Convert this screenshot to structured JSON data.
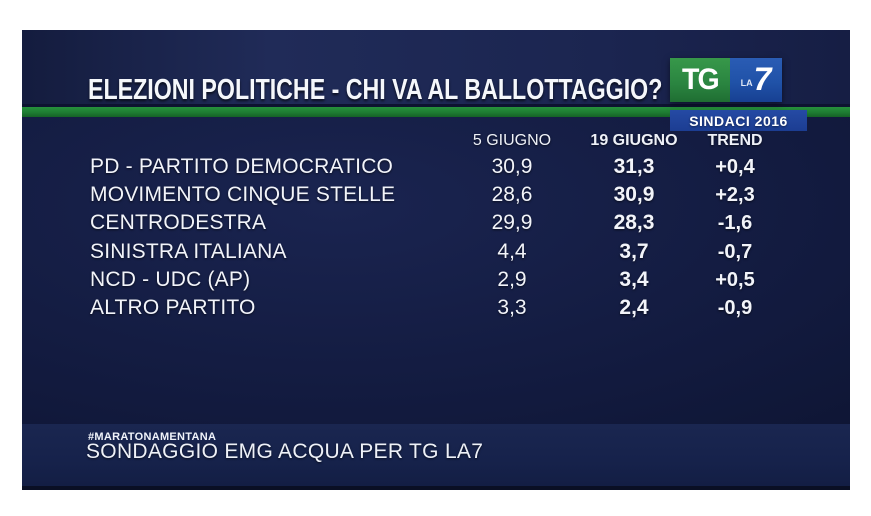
{
  "header": {
    "title": "ELEZIONI POLITICHE - CHI VA AL BALLOTTAGGIO?",
    "logo": {
      "tg": "TG",
      "la": "LA",
      "seven": "7"
    },
    "badge": "SINDACI 2016"
  },
  "table": {
    "columns": [
      "5 GIUGNO",
      "19 GIUGNO",
      "TREND"
    ],
    "rows": [
      {
        "party": "PD - PARTITO DEMOCRATICO",
        "june5": "30,9",
        "june19": "31,3",
        "trend": "+0,4"
      },
      {
        "party": "MOVIMENTO CINQUE STELLE",
        "june5": "28,6",
        "june19": "30,9",
        "trend": "+2,3"
      },
      {
        "party": "CENTRODESTRA",
        "june5": "29,9",
        "june19": "28,3",
        "trend": "-1,6"
      },
      {
        "party": "SINISTRA ITALIANA",
        "june5": "4,4",
        "june19": "3,7",
        "trend": "-0,7"
      },
      {
        "party": "NCD - UDC (AP)",
        "june5": "2,9",
        "june19": "3,4",
        "trend": "+0,5"
      },
      {
        "party": "ALTRO PARTITO",
        "june5": "3,3",
        "june19": "2,4",
        "trend": "-0,9"
      }
    ]
  },
  "footer": {
    "hashtag": "#MARATONAMENTANA",
    "source": "SONDAGGIO EMG ACQUA PER TG LA7"
  },
  "colors": {
    "background_navy": "#121a3e",
    "title_band": "#1b2550",
    "accent_green": "#1e7c32",
    "logo_green": "#2a8440",
    "logo_blue": "#2052a8",
    "badge_blue": "#1c3d92",
    "footer_band": "#16224b",
    "text_white": "#f2f4fa"
  },
  "chart_data": {
    "type": "table",
    "title": "ELEZIONI POLITICHE - CHI VA AL BALLOTTAGGIO?",
    "subtitle": "SINDACI 2016",
    "categories": [
      "PD - PARTITO DEMOCRATICO",
      "MOVIMENTO CINQUE STELLE",
      "CENTRODESTRA",
      "SINISTRA ITALIANA",
      "NCD - UDC (AP)",
      "ALTRO PARTITO"
    ],
    "series": [
      {
        "name": "5 GIUGNO",
        "values": [
          30.9,
          28.6,
          29.9,
          4.4,
          2.9,
          3.3
        ]
      },
      {
        "name": "19 GIUGNO",
        "values": [
          31.3,
          30.9,
          28.3,
          3.7,
          3.4,
          2.4
        ]
      },
      {
        "name": "TREND",
        "values": [
          0.4,
          2.3,
          -1.6,
          -0.7,
          0.5,
          -0.9
        ]
      }
    ],
    "unit": "percent",
    "source": "SONDAGGIO EMG ACQUA PER TG LA7"
  }
}
